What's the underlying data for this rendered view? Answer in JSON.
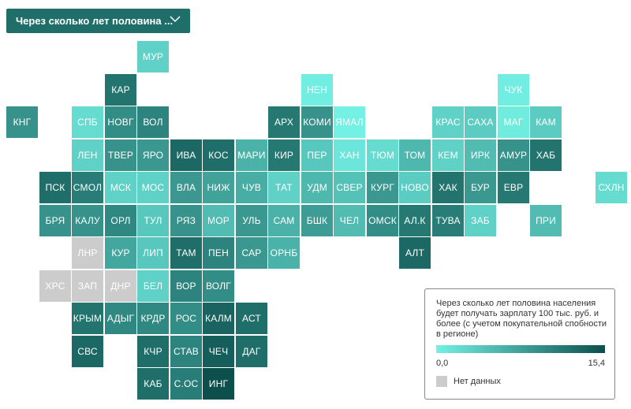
{
  "dropdown": {
    "label": "Через сколько лет половина ...",
    "icon": "chevron-down-icon"
  },
  "legend": {
    "title": "Через сколько лет половина населения будет получать зарплату 100 тыс. руб. и более (с учетом покупательной спобности в регионе)",
    "min_label": "0,0",
    "max_label": "15,4",
    "min_value": 0,
    "max_value": 15.4,
    "min_color": "#73f1e4",
    "max_color": "#0c4f4d",
    "no_data_label": "Нет данных",
    "no_data_color": "#cccccc"
  },
  "regions": [
    {
      "code": "МУР",
      "col": 4,
      "row": 0,
      "value": 3.0
    },
    {
      "code": "КАР",
      "col": 3,
      "row": 1,
      "value": 12.0
    },
    {
      "code": "НЕН",
      "col": 9,
      "row": 1,
      "value": 0.3
    },
    {
      "code": "ЧУК",
      "col": 15,
      "row": 1,
      "value": 0.3
    },
    {
      "code": "КНГ",
      "col": 0,
      "row": 2,
      "value": 9.0
    },
    {
      "code": "СПБ",
      "col": 2,
      "row": 2,
      "value": 2.0
    },
    {
      "code": "НОВГ",
      "col": 3,
      "row": 2,
      "value": 9.5
    },
    {
      "code": "ВОЛ",
      "col": 4,
      "row": 2,
      "value": 10.5
    },
    {
      "code": "АРХ",
      "col": 8,
      "row": 2,
      "value": 11.5
    },
    {
      "code": "КОМИ",
      "col": 9,
      "row": 2,
      "value": 9.0
    },
    {
      "code": "ЯМАЛ",
      "col": 10,
      "row": 2,
      "value": 0.0
    },
    {
      "code": "КРАС",
      "col": 13,
      "row": 2,
      "value": 3.0
    },
    {
      "code": "САХА",
      "col": 14,
      "row": 2,
      "value": 3.5
    },
    {
      "code": "МАГ",
      "col": 15,
      "row": 2,
      "value": 0.5
    },
    {
      "code": "КАМ",
      "col": 16,
      "row": 2,
      "value": 3.5
    },
    {
      "code": "ЛЕН",
      "col": 2,
      "row": 3,
      "value": 3.0
    },
    {
      "code": "ТВЕР",
      "col": 3,
      "row": 3,
      "value": 9.0
    },
    {
      "code": "ЯРО",
      "col": 4,
      "row": 3,
      "value": 8.5
    },
    {
      "code": "ИВА",
      "col": 5,
      "row": 3,
      "value": 13.0
    },
    {
      "code": "КОС",
      "col": 6,
      "row": 3,
      "value": 12.5
    },
    {
      "code": "МАРИ",
      "col": 7,
      "row": 3,
      "value": 6.0
    },
    {
      "code": "КИР",
      "col": 8,
      "row": 3,
      "value": 11.5
    },
    {
      "code": "ПЕР",
      "col": 9,
      "row": 3,
      "value": 4.0
    },
    {
      "code": "ХАН",
      "col": 10,
      "row": 3,
      "value": 1.0
    },
    {
      "code": "ТЮМ",
      "col": 11,
      "row": 3,
      "value": 2.0
    },
    {
      "code": "ТОМ",
      "col": 12,
      "row": 3,
      "value": 5.5
    },
    {
      "code": "КЕМ",
      "col": 13,
      "row": 3,
      "value": 3.0
    },
    {
      "code": "ИРК",
      "col": 14,
      "row": 3,
      "value": 5.0
    },
    {
      "code": "АМУР",
      "col": 15,
      "row": 3,
      "value": 9.0
    },
    {
      "code": "ХАБ",
      "col": 16,
      "row": 3,
      "value": 12.0
    },
    {
      "code": "ПСК",
      "col": 1,
      "row": 4,
      "value": 12.5
    },
    {
      "code": "СМОЛ",
      "col": 2,
      "row": 4,
      "value": 11.0
    },
    {
      "code": "МСК",
      "col": 3,
      "row": 4,
      "value": 3.0
    },
    {
      "code": "МОС",
      "col": 4,
      "row": 4,
      "value": 3.0
    },
    {
      "code": "ВЛА",
      "col": 5,
      "row": 4,
      "value": 8.5
    },
    {
      "code": "НИЖ",
      "col": 6,
      "row": 4,
      "value": 7.5
    },
    {
      "code": "ЧУВ",
      "col": 7,
      "row": 4,
      "value": 6.5
    },
    {
      "code": "ТАТ",
      "col": 8,
      "row": 4,
      "value": 3.0
    },
    {
      "code": "УДМ",
      "col": 9,
      "row": 4,
      "value": 5.5
    },
    {
      "code": "СВЕР",
      "col": 10,
      "row": 4,
      "value": 4.5
    },
    {
      "code": "КУРГ",
      "col": 11,
      "row": 4,
      "value": 8.5
    },
    {
      "code": "НОВО",
      "col": 12,
      "row": 4,
      "value": 3.5
    },
    {
      "code": "ХАК",
      "col": 13,
      "row": 4,
      "value": 12.0
    },
    {
      "code": "БУР",
      "col": 14,
      "row": 4,
      "value": 8.5
    },
    {
      "code": "ЕВР",
      "col": 15,
      "row": 4,
      "value": 11.5
    },
    {
      "code": "СХЛН",
      "col": 18,
      "row": 4,
      "value": 2.0
    },
    {
      "code": "БРЯ",
      "col": 1,
      "row": 5,
      "value": 9.0
    },
    {
      "code": "КАЛУ",
      "col": 2,
      "row": 5,
      "value": 9.0
    },
    {
      "code": "ОРЛ",
      "col": 3,
      "row": 5,
      "value": 10.0
    },
    {
      "code": "ТУЛ",
      "col": 4,
      "row": 5,
      "value": 4.0
    },
    {
      "code": "РЯЗ",
      "col": 5,
      "row": 5,
      "value": 9.0
    },
    {
      "code": "МОР",
      "col": 6,
      "row": 5,
      "value": 5.0
    },
    {
      "code": "УЛЬ",
      "col": 7,
      "row": 5,
      "value": 8.5
    },
    {
      "code": "САМ",
      "col": 8,
      "row": 5,
      "value": 6.0
    },
    {
      "code": "БШК",
      "col": 9,
      "row": 5,
      "value": 8.0
    },
    {
      "code": "ЧЕЛ",
      "col": 10,
      "row": 5,
      "value": 5.0
    },
    {
      "code": "ОМСК",
      "col": 11,
      "row": 5,
      "value": 9.5
    },
    {
      "code": "АЛ.К",
      "col": 12,
      "row": 5,
      "value": 11.5
    },
    {
      "code": "ТУВА",
      "col": 13,
      "row": 5,
      "value": 11.0
    },
    {
      "code": "ЗАБ",
      "col": 14,
      "row": 5,
      "value": 3.0
    },
    {
      "code": "ПРИ",
      "col": 16,
      "row": 5,
      "value": 5.0
    },
    {
      "code": "ЛНР",
      "col": 2,
      "row": 6,
      "value": null
    },
    {
      "code": "КУР",
      "col": 3,
      "row": 6,
      "value": 7.0
    },
    {
      "code": "ЛИП",
      "col": 4,
      "row": 6,
      "value": 4.0
    },
    {
      "code": "ТАМ",
      "col": 5,
      "row": 6,
      "value": 12.5
    },
    {
      "code": "ПЕН",
      "col": 6,
      "row": 6,
      "value": 10.5
    },
    {
      "code": "САР",
      "col": 7,
      "row": 6,
      "value": 8.5
    },
    {
      "code": "ОРНБ",
      "col": 8,
      "row": 6,
      "value": 6.0
    },
    {
      "code": "АЛТ",
      "col": 12,
      "row": 6,
      "value": 13.0
    },
    {
      "code": "ХРС",
      "col": 1,
      "row": 7,
      "value": null
    },
    {
      "code": "ЗАП",
      "col": 2,
      "row": 7,
      "value": null
    },
    {
      "code": "ДНР",
      "col": 3,
      "row": 7,
      "value": null
    },
    {
      "code": "БЕЛ",
      "col": 4,
      "row": 7,
      "value": 3.0
    },
    {
      "code": "ВОР",
      "col": 5,
      "row": 7,
      "value": 10.5
    },
    {
      "code": "ВОЛГ",
      "col": 6,
      "row": 7,
      "value": 9.5
    },
    {
      "code": "КРЫМ",
      "col": 2,
      "row": 8,
      "value": 12.0
    },
    {
      "code": "АДЫГ",
      "col": 3,
      "row": 8,
      "value": 10.0
    },
    {
      "code": "КРДР",
      "col": 4,
      "row": 8,
      "value": 10.0
    },
    {
      "code": "РОС",
      "col": 5,
      "row": 8,
      "value": 9.5
    },
    {
      "code": "КАЛМ",
      "col": 6,
      "row": 8,
      "value": 13.5
    },
    {
      "code": "АСТ",
      "col": 7,
      "row": 8,
      "value": 12.5
    },
    {
      "code": "СВС",
      "col": 2,
      "row": 9,
      "value": 13.0
    },
    {
      "code": "КЧР",
      "col": 4,
      "row": 9,
      "value": 12.5
    },
    {
      "code": "СТАВ",
      "col": 5,
      "row": 9,
      "value": 10.5
    },
    {
      "code": "ЧЕЧ",
      "col": 6,
      "row": 9,
      "value": 14.0
    },
    {
      "code": "ДАГ",
      "col": 7,
      "row": 9,
      "value": 12.5
    },
    {
      "code": "КАБ",
      "col": 4,
      "row": 10,
      "value": 12.5
    },
    {
      "code": "С.ОС",
      "col": 5,
      "row": 10,
      "value": 11.0
    },
    {
      "code": "ИНГ",
      "col": 6,
      "row": 10,
      "value": 15.4
    }
  ]
}
